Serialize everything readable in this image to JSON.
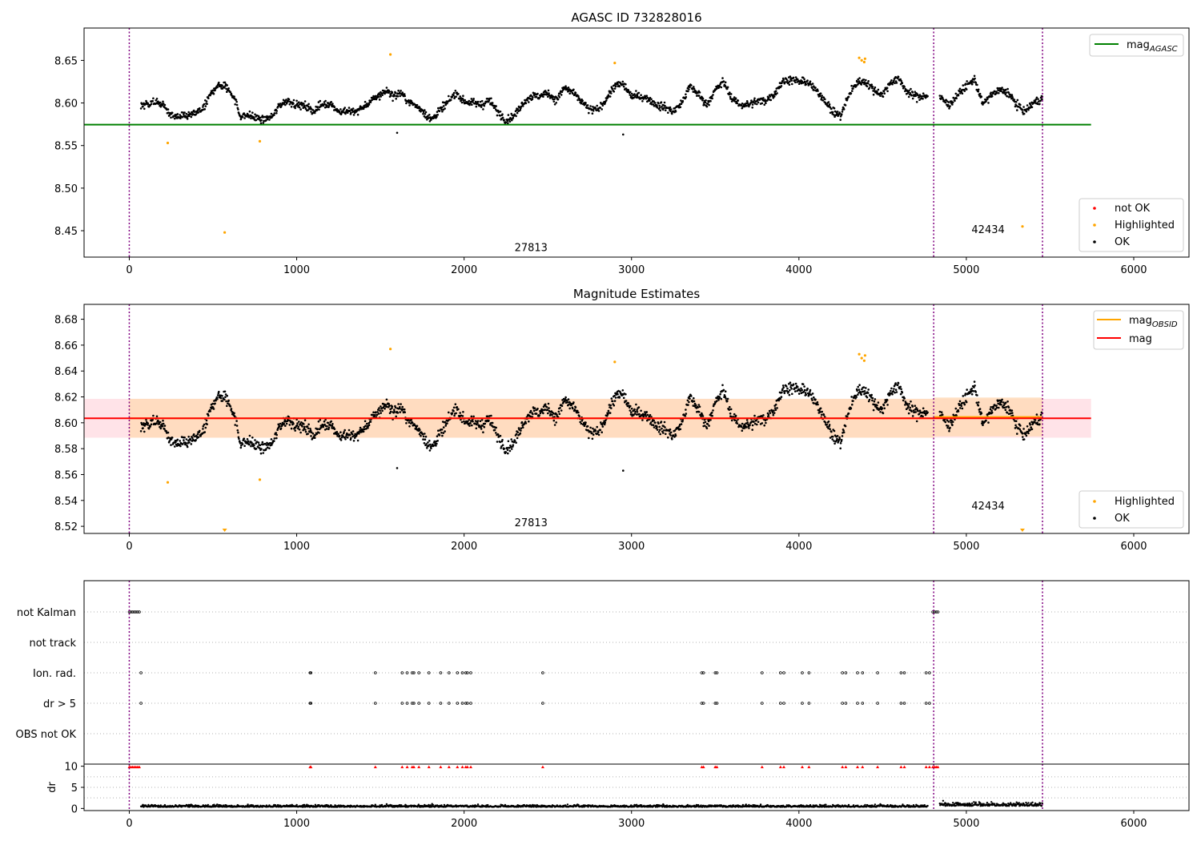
{
  "colors": {
    "ok": "#000000",
    "highlighted": "#ffa500",
    "not_ok": "#ff0000",
    "agasc_line": "#008000",
    "obsid_line": "#ffa500",
    "mag_line": "#ff0000",
    "mag_band": "#ffc0cb",
    "obsid_band": "#ffdab9",
    "obs_boundary": "#800080",
    "grid": "#b0b0b0"
  },
  "chart_data": [
    {
      "name": "agasc",
      "type": "scatter",
      "title": "AGASC ID 732828016",
      "xlim": [
        -270,
        6330
      ],
      "ylim": [
        8.419,
        8.688
      ],
      "xticks": [
        0,
        1000,
        2000,
        3000,
        4000,
        5000,
        6000
      ],
      "yticks": [
        8.45,
        8.5,
        8.55,
        8.6,
        8.65
      ],
      "ytick_labels": [
        "8.45",
        "8.50",
        "8.55",
        "8.60",
        "8.65"
      ],
      "legend_upper": [
        {
          "label": "mag",
          "sub": "AGASC",
          "kind": "line",
          "color": "#008000"
        }
      ],
      "legend_lower": [
        {
          "label": "not OK",
          "kind": "dot",
          "color": "#ff0000"
        },
        {
          "label": "Highlighted",
          "kind": "dot",
          "color": "#ffa500"
        },
        {
          "label": "OK",
          "kind": "dot",
          "color": "#000000"
        }
      ],
      "hline": {
        "y": 8.5745,
        "x_range": [
          -270,
          5745
        ]
      },
      "obs_lines": [
        0,
        4805,
        5455
      ],
      "obs_labels": [
        {
          "text": "27813",
          "x": 2400,
          "y": 8.426
        },
        {
          "text": "42434",
          "x": 5130,
          "y": 8.447
        }
      ],
      "highlighted_points": [
        {
          "x": 230,
          "y": 8.553
        },
        {
          "x": 570,
          "y": 8.448
        },
        {
          "x": 780,
          "y": 8.555
        },
        {
          "x": 1560,
          "y": 8.657
        },
        {
          "x": 2900,
          "y": 8.647
        },
        {
          "x": 4360,
          "y": 8.653
        },
        {
          "x": 4375,
          "y": 8.65
        },
        {
          "x": 4390,
          "y": 8.648
        },
        {
          "x": 4395,
          "y": 8.652
        },
        {
          "x": 5335,
          "y": 8.455
        }
      ]
    },
    {
      "name": "estimates",
      "type": "scatter",
      "title": "Magnitude Estimates",
      "xlim": [
        -270,
        6330
      ],
      "ylim": [
        8.5145,
        8.6915
      ],
      "xticks": [
        0,
        1000,
        2000,
        3000,
        4000,
        5000,
        6000
      ],
      "yticks": [
        8.52,
        8.54,
        8.56,
        8.58,
        8.6,
        8.62,
        8.64,
        8.66,
        8.68
      ],
      "ytick_labels": [
        "8.52",
        "8.54",
        "8.56",
        "8.58",
        "8.60",
        "8.62",
        "8.64",
        "8.66",
        "8.68"
      ],
      "legend_upper": [
        {
          "label": "mag",
          "sub": "OBSID",
          "kind": "line",
          "color": "#ffa500"
        },
        {
          "label": "mag",
          "kind": "line",
          "color": "#ff0000"
        }
      ],
      "legend_lower": [
        {
          "label": "Highlighted",
          "kind": "dot",
          "color": "#ffa500"
        },
        {
          "label": "OK",
          "kind": "dot",
          "color": "#000000"
        }
      ],
      "mag": {
        "y": 8.6035,
        "band": [
          8.5885,
          8.6185
        ],
        "x_range": [
          -270,
          5745
        ]
      },
      "mag_obsid": [
        {
          "x_range": [
            0,
            4805
          ],
          "y": 8.6035,
          "band": [
            8.5885,
            8.6185
          ]
        },
        {
          "x_range": [
            4805,
            5455
          ],
          "y": 8.6045,
          "band": [
            8.5895,
            8.6195
          ]
        }
      ],
      "obs_lines": [
        0,
        4805,
        5455
      ],
      "obs_labels": [
        {
          "text": "27813",
          "x": 2400,
          "y": 8.52
        },
        {
          "text": "42434",
          "x": 5130,
          "y": 8.533
        }
      ],
      "highlighted_points": [
        {
          "x": 230,
          "y": 8.554
        },
        {
          "x": 780,
          "y": 8.556
        },
        {
          "x": 1560,
          "y": 8.657
        },
        {
          "x": 2900,
          "y": 8.647
        },
        {
          "x": 4360,
          "y": 8.653
        },
        {
          "x": 4375,
          "y": 8.65
        },
        {
          "x": 4390,
          "y": 8.648
        },
        {
          "x": 4395,
          "y": 8.652
        }
      ],
      "clipped_points": [
        {
          "x": 570
        },
        {
          "x": 5335
        }
      ]
    },
    {
      "name": "flags",
      "type": "scatter",
      "xlim": [
        -270,
        6330
      ],
      "categories": [
        "not Kalman",
        "not track",
        "Ion. rad.",
        "dr > 5",
        "OBS not OK"
      ],
      "flag_points": {
        "not Kalman": [
          0,
          10,
          20,
          30,
          40,
          50,
          60,
          4800,
          4810,
          4820,
          4830
        ],
        "not track": [],
        "Ion. rad.": [
          70,
          1080,
          1085,
          1470,
          1630,
          1660,
          1690,
          1700,
          1730,
          1790,
          1860,
          1910,
          1960,
          1990,
          2010,
          2020,
          2040,
          2470,
          3420,
          3430,
          3500,
          3510,
          3780,
          3890,
          3910,
          4020,
          4060,
          4260,
          4280,
          4350,
          4380,
          4470,
          4610,
          4630,
          4760,
          4780
        ],
        "dr > 5": [
          70,
          1080,
          1085,
          1470,
          1630,
          1660,
          1690,
          1700,
          1730,
          1790,
          1860,
          1910,
          1960,
          1990,
          2010,
          2020,
          2040,
          2470,
          3420,
          3430,
          3500,
          3510,
          3780,
          3890,
          3910,
          4020,
          4060,
          4260,
          4280,
          4350,
          4380,
          4470,
          4610,
          4630,
          4760,
          4780
        ],
        "OBS not OK": []
      },
      "obs_lines": [
        0,
        4805,
        5455
      ]
    },
    {
      "name": "dr",
      "type": "scatter",
      "ylabel": "dr",
      "xlim": [
        -270,
        6330
      ],
      "ylim": [
        -0.5,
        10.5
      ],
      "xticks": [
        0,
        1000,
        2000,
        3000,
        4000,
        5000,
        6000
      ],
      "yticks": [
        0,
        5,
        10
      ],
      "threshold_line": 10,
      "clipped_x": [
        0,
        10,
        20,
        30,
        40,
        50,
        60,
        1080,
        1085,
        1470,
        1630,
        1660,
        1690,
        1700,
        1730,
        1790,
        1860,
        1910,
        1960,
        1990,
        2010,
        2020,
        2040,
        2470,
        3420,
        3430,
        3500,
        3510,
        3780,
        3890,
        3910,
        4020,
        4060,
        4260,
        4280,
        4350,
        4380,
        4470,
        4610,
        4630,
        4760,
        4780,
        4800,
        4810,
        4820,
        4830
      ],
      "obs_lines": [
        0,
        4805,
        5455
      ]
    }
  ]
}
